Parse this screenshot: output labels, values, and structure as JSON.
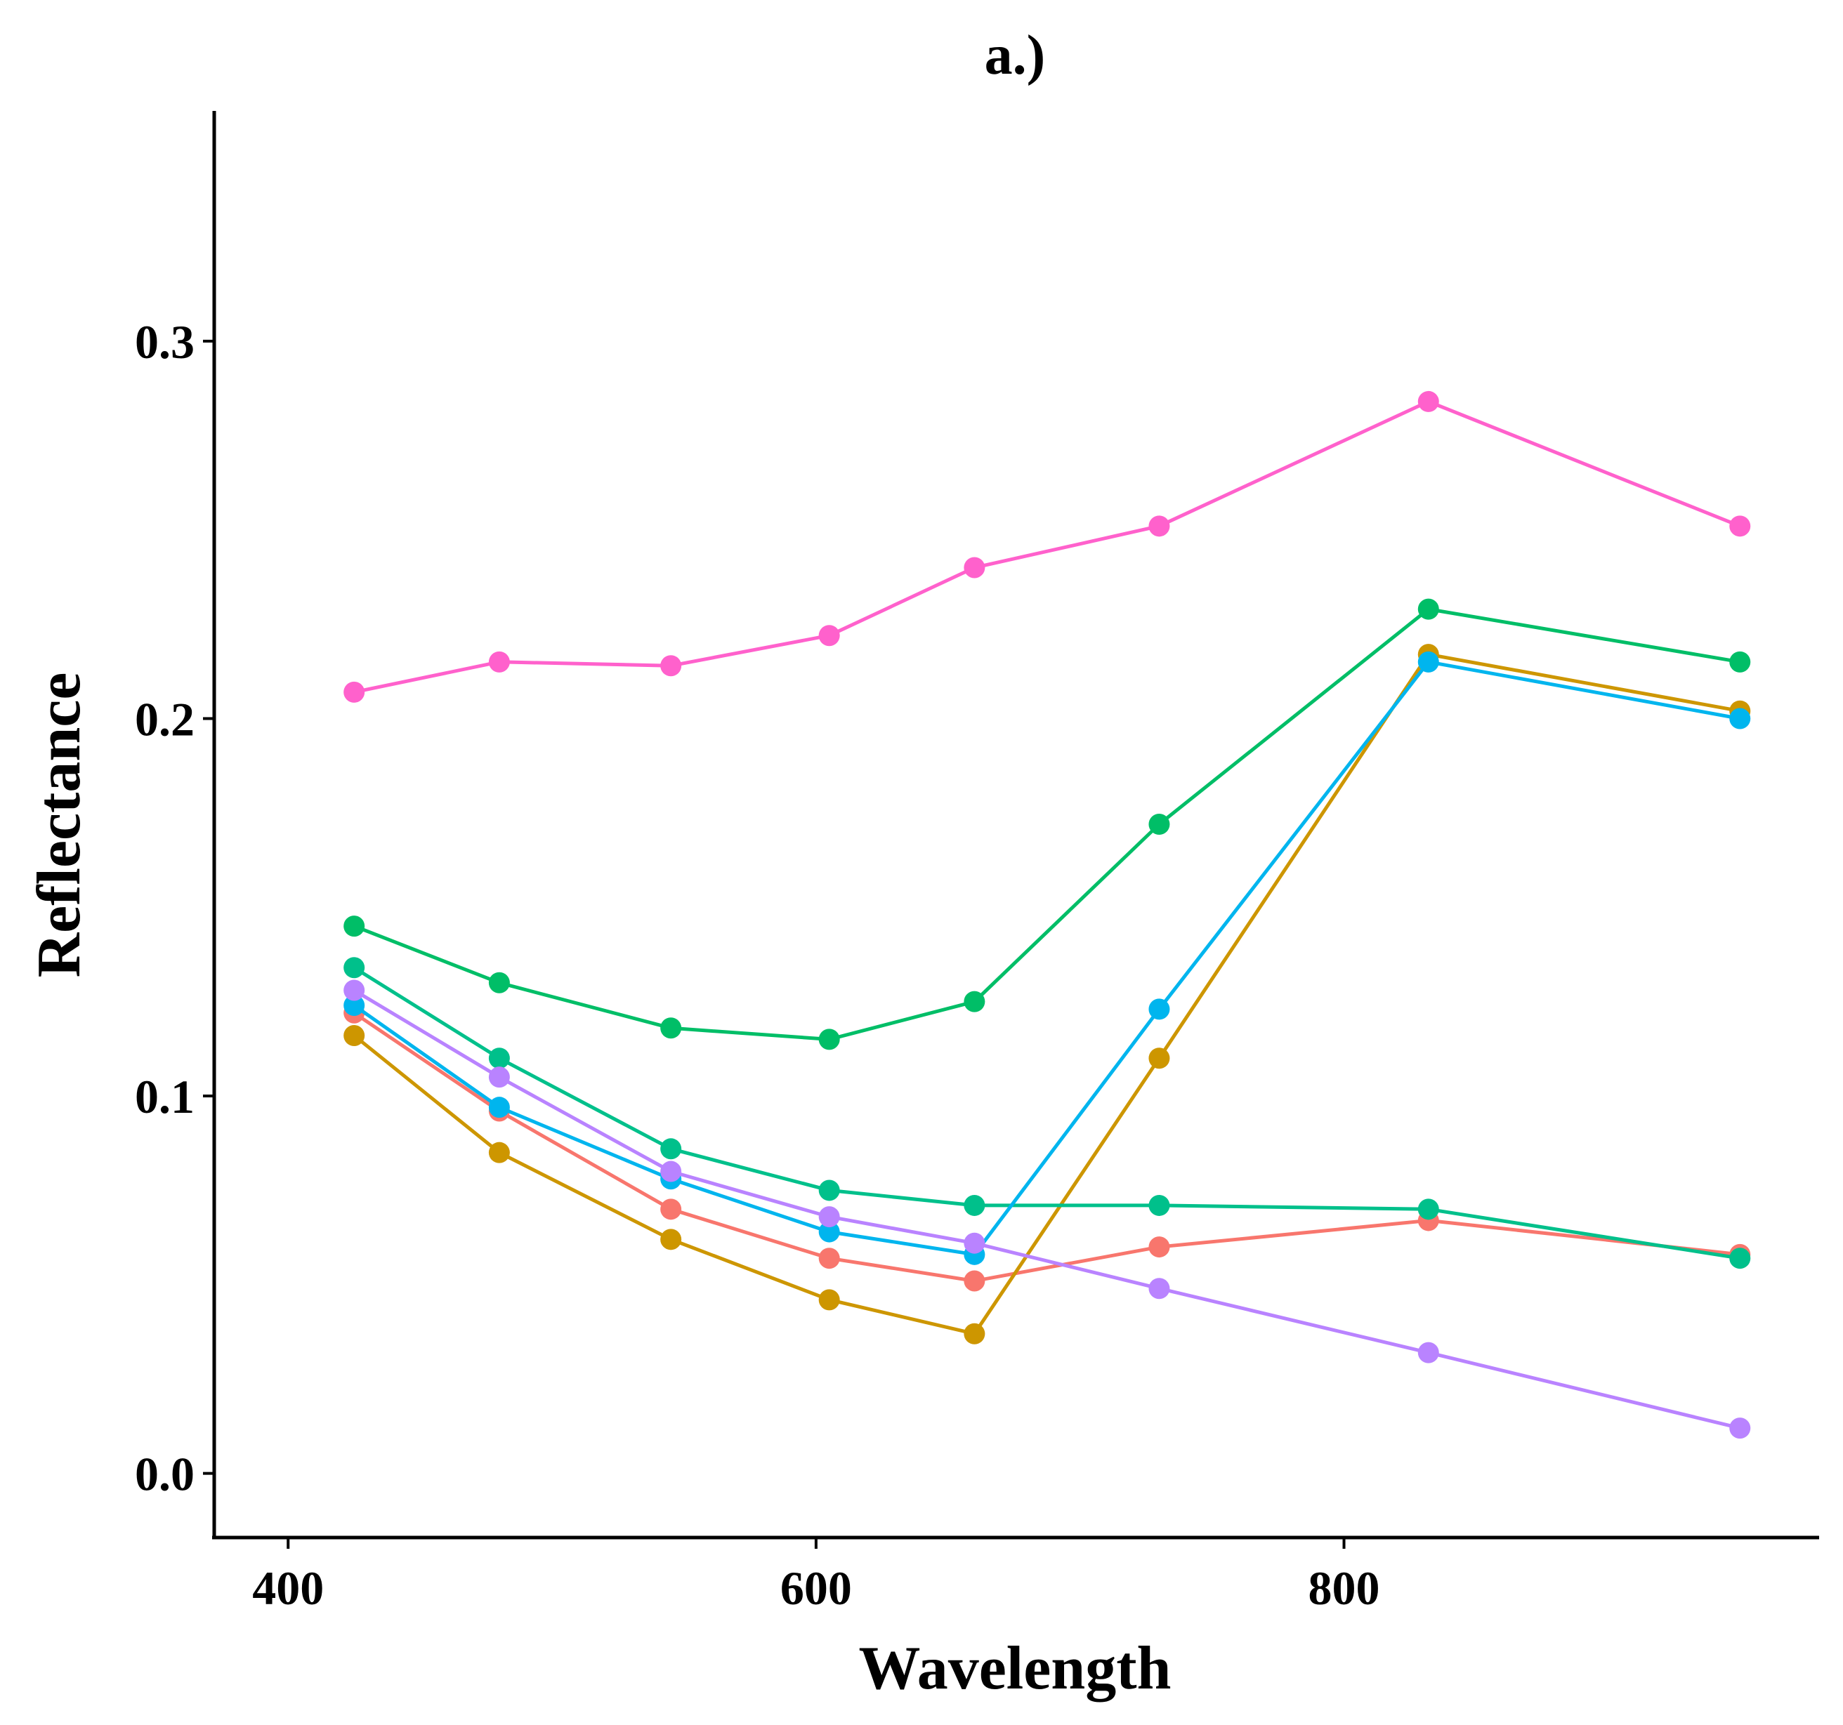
{
  "chart_data": {
    "type": "line",
    "title": "a.)",
    "xlabel": "Wavelength",
    "ylabel": "Reflectance",
    "xlim": [
      372,
      980
    ],
    "ylim": [
      -0.017,
      0.361
    ],
    "xticks": [
      {
        "value": 400,
        "label": "400"
      },
      {
        "value": 600,
        "label": "600"
      },
      {
        "value": 800,
        "label": "800"
      }
    ],
    "yticks": [
      {
        "value": 0.0,
        "label": "0.0"
      },
      {
        "value": 0.1,
        "label": "0.1"
      },
      {
        "value": 0.2,
        "label": "0.2"
      },
      {
        "value": 0.3,
        "label": "0.3"
      }
    ],
    "x": [
      425,
      480,
      545,
      605,
      660,
      730,
      832,
      950
    ],
    "series": [
      {
        "name": "red",
        "color": "#F8766D",
        "values": [
          0.122,
          0.096,
          0.07,
          0.057,
          0.051,
          0.06,
          0.067,
          0.058
        ]
      },
      {
        "name": "olive",
        "color": "#CD9600",
        "values": [
          0.116,
          0.085,
          0.062,
          0.046,
          0.037,
          0.11,
          0.217,
          0.202
        ]
      },
      {
        "name": "green",
        "color": "#00BE67",
        "values": [
          0.145,
          0.13,
          0.118,
          0.115,
          0.125,
          0.172,
          0.229,
          0.215
        ]
      },
      {
        "name": "teal",
        "color": "#00C08B",
        "values": [
          0.134,
          0.11,
          0.086,
          0.075,
          0.071,
          0.071,
          0.07,
          0.057
        ]
      },
      {
        "name": "blue",
        "color": "#00B5EE",
        "values": [
          0.124,
          0.097,
          0.078,
          0.064,
          0.058,
          0.123,
          0.215,
          0.2
        ]
      },
      {
        "name": "purple",
        "color": "#B983FF",
        "values": [
          0.128,
          0.105,
          0.08,
          0.068,
          0.061,
          0.049,
          0.032,
          0.012
        ]
      },
      {
        "name": "pink",
        "color": "#FF61CC",
        "values": [
          0.207,
          0.215,
          0.214,
          0.222,
          0.24,
          0.251,
          0.284,
          0.251
        ]
      }
    ]
  }
}
